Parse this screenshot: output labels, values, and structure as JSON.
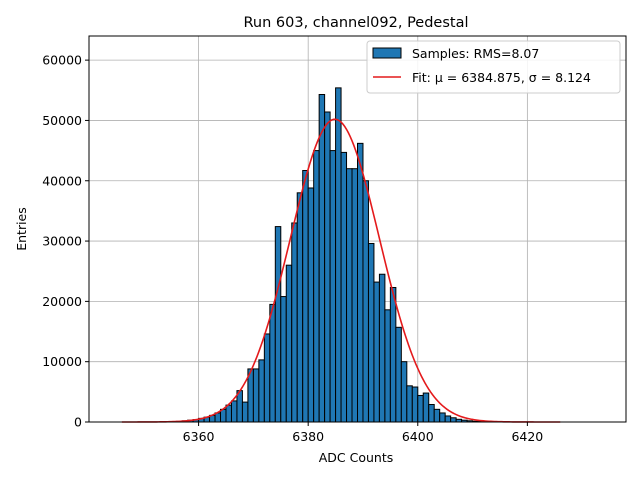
{
  "chart_data": {
    "type": "bar",
    "title": "Run 603, channel092, Pedestal",
    "xlabel": "ADC Counts",
    "ylabel": "Entries",
    "xlim": [
      6340.0,
      6438.0
    ],
    "ylim": [
      0,
      64000
    ],
    "grid": true,
    "legend_position": "top-right",
    "x_ticks": [
      6360,
      6380,
      6400,
      6420
    ],
    "y_ticks": [
      0,
      10000,
      20000,
      30000,
      40000,
      50000,
      60000
    ],
    "histogram": {
      "name": "Samples: RMS=8.07",
      "bin_width": 1,
      "bin_starts": [
        6356,
        6357,
        6358,
        6359,
        6360,
        6361,
        6362,
        6363,
        6364,
        6365,
        6366,
        6367,
        6368,
        6369,
        6370,
        6371,
        6372,
        6373,
        6374,
        6375,
        6376,
        6377,
        6378,
        6379,
        6380,
        6381,
        6382,
        6383,
        6384,
        6385,
        6386,
        6387,
        6388,
        6389,
        6390,
        6391,
        6392,
        6393,
        6394,
        6395,
        6396,
        6397,
        6398,
        6399,
        6400,
        6401,
        6402,
        6403,
        6404,
        6405,
        6406,
        6407,
        6408,
        6409,
        6410,
        6411,
        6412,
        6413,
        6414,
        6415,
        6416
      ],
      "values": [
        100,
        200,
        300,
        400,
        600,
        800,
        1100,
        1500,
        2100,
        2800,
        3500,
        5200,
        3300,
        8800,
        8800,
        10300,
        14600,
        19500,
        32400,
        20800,
        26000,
        33000,
        38000,
        41700,
        38800,
        45000,
        54300,
        51400,
        45000,
        55400,
        44700,
        42000,
        42000,
        46200,
        40000,
        29600,
        23200,
        24500,
        18600,
        22300,
        15700,
        10000,
        6000,
        5800,
        4400,
        4800,
        2900,
        2100,
        1500,
        1000,
        700,
        450,
        300,
        200,
        120,
        80,
        50,
        30,
        20,
        10,
        5
      ],
      "color": "#1f77b4"
    },
    "fit": {
      "name": "Fit: μ = 6384.875, σ = 8.124",
      "type": "gaussian",
      "mu": 6384.875,
      "sigma": 8.124,
      "amplitude": 50200,
      "x_range": [
        6346,
        6426
      ],
      "color": "#e41a1c"
    }
  }
}
